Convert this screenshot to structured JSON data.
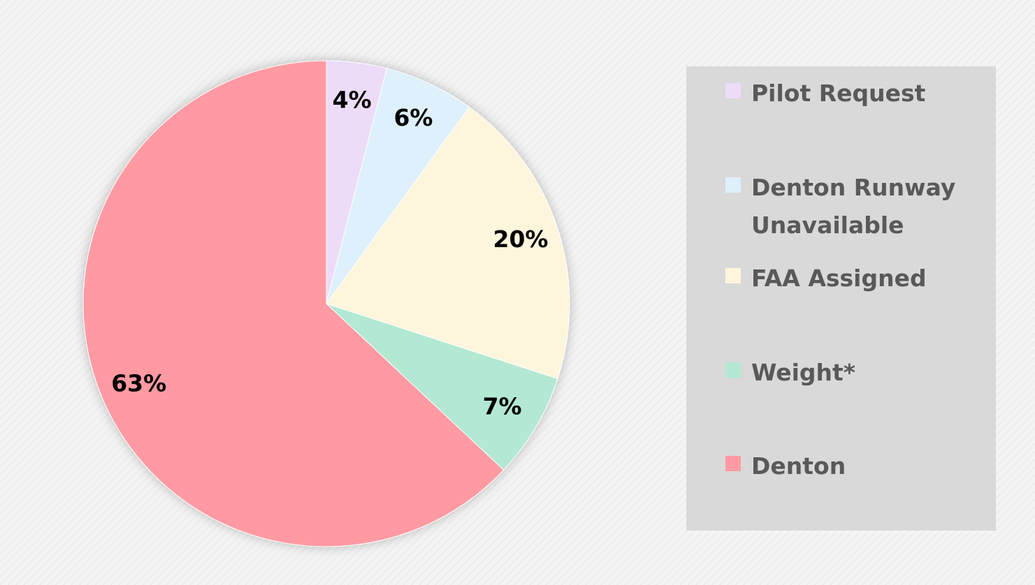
{
  "chart_data": {
    "type": "pie",
    "categories": [
      "Pilot Request",
      "Denton Runway Unavailable",
      "FAA Assigned",
      "Weight*",
      "Denton"
    ],
    "values": [
      4,
      6,
      20,
      7,
      63
    ],
    "value_labels": [
      "4%",
      "6%",
      "20%",
      "7%",
      "63%"
    ],
    "colors": [
      "#ecdcf8",
      "#ddf0fb",
      "#fdf6dd",
      "#b3e8d3",
      "#ff9aa2"
    ],
    "legend": "right"
  }
}
